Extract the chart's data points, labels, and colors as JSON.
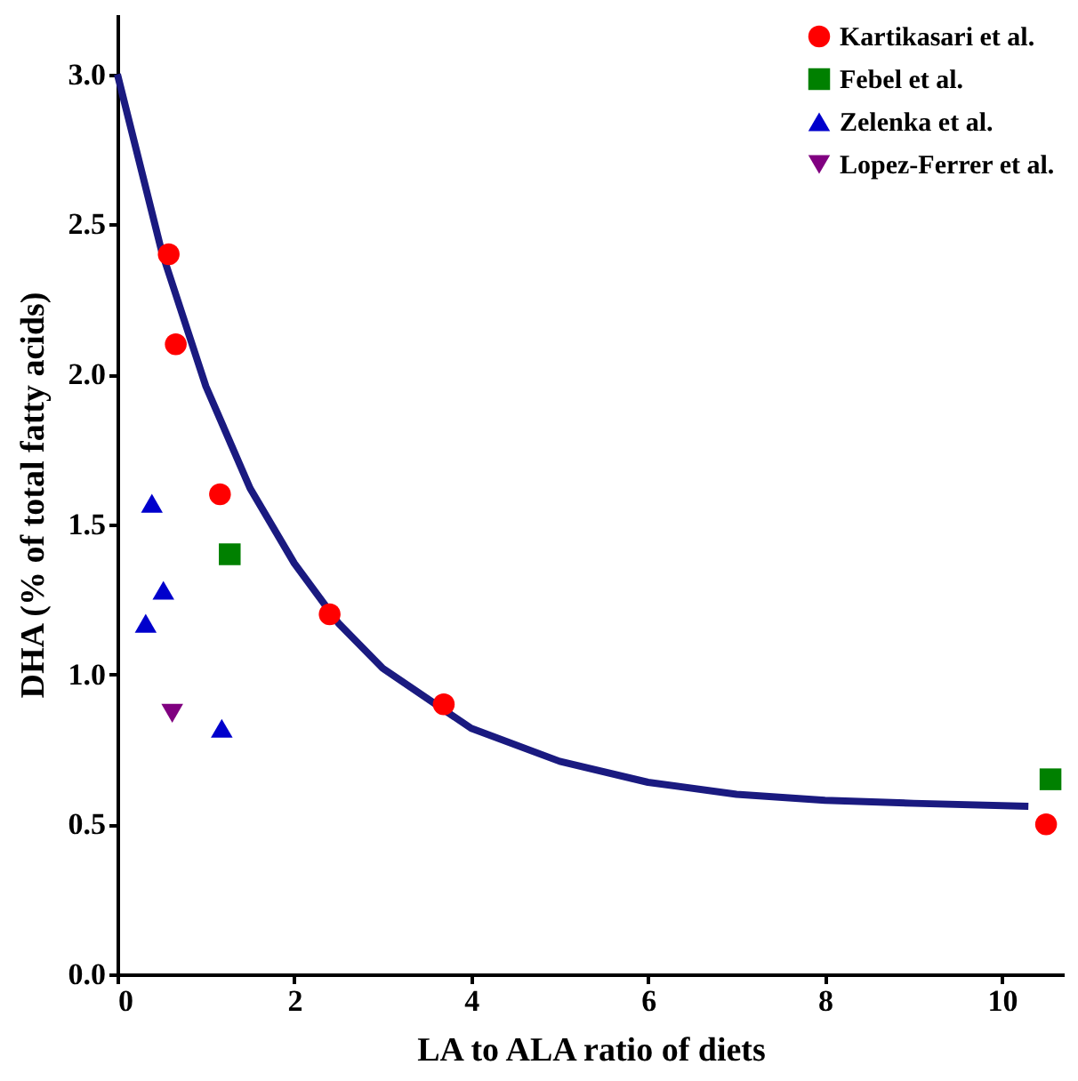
{
  "chart_data": {
    "type": "scatter",
    "xlabel": "LA to ALA ratio of diets",
    "ylabel": "DHA (% of total fatty acids)",
    "xlim": [
      0,
      10.7
    ],
    "ylim": [
      0,
      3.2
    ],
    "xticks": [
      0,
      2,
      4,
      6,
      8,
      10
    ],
    "yticks": [
      {
        "value": 0,
        "label": "0.0"
      },
      {
        "value": 0.5,
        "label": "0.5"
      },
      {
        "value": 1,
        "label": "1.0"
      },
      {
        "value": 1.5,
        "label": "1.5"
      },
      {
        "value": 2,
        "label": "2.0"
      },
      {
        "value": 2.5,
        "label": "2.5"
      },
      {
        "value": 3,
        "label": "3.0"
      }
    ],
    "grid": false,
    "legend": "top right",
    "series": [
      {
        "name": "Kartikasari et al.",
        "color": "#ff0000",
        "marker": "circle",
        "x": [
          0.58,
          0.66,
          1.16,
          2.4,
          3.69,
          10.5
        ],
        "values": [
          2.4,
          2.1,
          1.6,
          1.2,
          0.9,
          0.5
        ]
      },
      {
        "name": "Febel et al.",
        "color": "#008000",
        "marker": "square",
        "x": [
          1.27,
          10.55
        ],
        "values": [
          1.4,
          0.65
        ]
      },
      {
        "name": "Zelenka et al.",
        "color": "#0000cc",
        "marker": "triangle",
        "x": [
          0.39,
          0.52,
          0.32,
          1.18
        ],
        "values": [
          1.57,
          1.28,
          1.17,
          0.82
        ]
      },
      {
        "name": "Lopez-Ferrer et al.",
        "color": "#800080",
        "marker": "triangle-down",
        "x": [
          0.62
        ],
        "values": [
          0.87
        ]
      },
      {
        "type": "line",
        "color": "#1a1a80",
        "x": [
          0,
          0.5,
          1,
          1.5,
          2,
          2.5,
          3,
          4,
          5,
          6,
          7,
          8,
          9,
          10.3
        ],
        "values": [
          3.0,
          2.41,
          1.96,
          1.62,
          1.37,
          1.17,
          1.02,
          0.82,
          0.71,
          0.64,
          0.6,
          0.58,
          0.57,
          0.56
        ]
      }
    ]
  }
}
